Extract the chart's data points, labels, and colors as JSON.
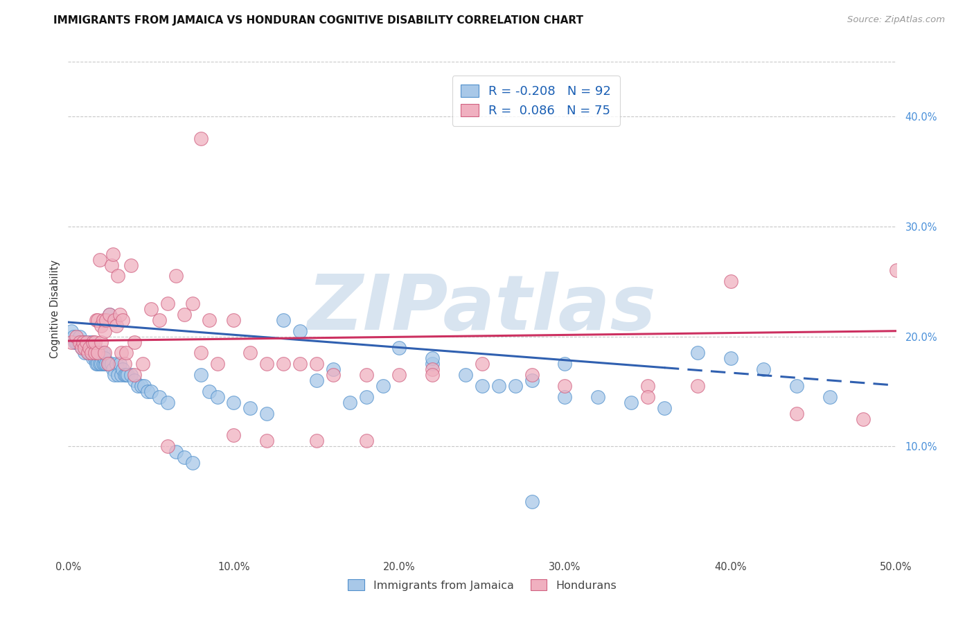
{
  "title": "IMMIGRANTS FROM JAMAICA VS HONDURAN COGNITIVE DISABILITY CORRELATION CHART",
  "source_text": "Source: ZipAtlas.com",
  "ylabel": "Cognitive Disability",
  "xlim": [
    0.0,
    0.5
  ],
  "ylim": [
    0.0,
    0.45
  ],
  "xticks": [
    0.0,
    0.1,
    0.2,
    0.3,
    0.4,
    0.5
  ],
  "yticks_right": [
    0.1,
    0.2,
    0.3,
    0.4
  ],
  "ytick_labels_right": [
    "10.0%",
    "20.0%",
    "30.0%",
    "40.0%"
  ],
  "xtick_labels": [
    "0.0%",
    "10.0%",
    "20.0%",
    "30.0%",
    "40.0%",
    "50.0%"
  ],
  "series": [
    {
      "name": "Immigrants from Jamaica",
      "color": "#a8c8e8",
      "edge_color": "#5090cc",
      "R": -0.208,
      "N": 92,
      "trend_color": "#3060b0",
      "trend_solid_end": 0.36
    },
    {
      "name": "Hondurans",
      "color": "#f0b0c0",
      "edge_color": "#d06080",
      "R": 0.086,
      "N": 75,
      "trend_color": "#cc3060"
    }
  ],
  "legend_R_color": "#1a5fb4",
  "background_color": "#ffffff",
  "grid_color": "#c8c8c8",
  "watermark": "ZIPatlas",
  "watermark_color": "#d8e4f0",
  "jamaica_x": [
    0.002,
    0.003,
    0.004,
    0.005,
    0.006,
    0.007,
    0.008,
    0.009,
    0.01,
    0.01,
    0.011,
    0.012,
    0.012,
    0.013,
    0.013,
    0.014,
    0.014,
    0.015,
    0.015,
    0.016,
    0.016,
    0.017,
    0.017,
    0.018,
    0.018,
    0.019,
    0.019,
    0.02,
    0.02,
    0.021,
    0.021,
    0.022,
    0.022,
    0.023,
    0.024,
    0.025,
    0.025,
    0.026,
    0.027,
    0.028,
    0.029,
    0.03,
    0.031,
    0.032,
    0.033,
    0.034,
    0.035,
    0.036,
    0.038,
    0.04,
    0.042,
    0.044,
    0.046,
    0.048,
    0.05,
    0.055,
    0.06,
    0.065,
    0.07,
    0.075,
    0.08,
    0.085,
    0.09,
    0.1,
    0.11,
    0.12,
    0.13,
    0.14,
    0.15,
    0.16,
    0.17,
    0.18,
    0.19,
    0.2,
    0.22,
    0.24,
    0.26,
    0.28,
    0.3,
    0.32,
    0.34,
    0.36,
    0.38,
    0.4,
    0.42,
    0.44,
    0.46,
    0.25,
    0.27,
    0.3,
    0.22,
    0.28
  ],
  "jamaica_y": [
    0.205,
    0.2,
    0.195,
    0.195,
    0.195,
    0.2,
    0.19,
    0.195,
    0.185,
    0.195,
    0.19,
    0.185,
    0.19,
    0.185,
    0.195,
    0.185,
    0.19,
    0.18,
    0.195,
    0.18,
    0.185,
    0.175,
    0.185,
    0.175,
    0.185,
    0.175,
    0.185,
    0.175,
    0.185,
    0.175,
    0.185,
    0.175,
    0.18,
    0.175,
    0.175,
    0.175,
    0.22,
    0.175,
    0.17,
    0.165,
    0.175,
    0.165,
    0.175,
    0.165,
    0.17,
    0.165,
    0.165,
    0.165,
    0.165,
    0.16,
    0.155,
    0.155,
    0.155,
    0.15,
    0.15,
    0.145,
    0.14,
    0.095,
    0.09,
    0.085,
    0.165,
    0.15,
    0.145,
    0.14,
    0.135,
    0.13,
    0.215,
    0.205,
    0.16,
    0.17,
    0.14,
    0.145,
    0.155,
    0.19,
    0.175,
    0.165,
    0.155,
    0.16,
    0.145,
    0.145,
    0.14,
    0.135,
    0.185,
    0.18,
    0.17,
    0.155,
    0.145,
    0.155,
    0.155,
    0.175,
    0.18,
    0.05
  ],
  "honduran_x": [
    0.002,
    0.005,
    0.007,
    0.008,
    0.009,
    0.01,
    0.011,
    0.012,
    0.013,
    0.014,
    0.015,
    0.016,
    0.016,
    0.017,
    0.018,
    0.018,
    0.019,
    0.02,
    0.02,
    0.021,
    0.022,
    0.022,
    0.023,
    0.024,
    0.025,
    0.026,
    0.027,
    0.028,
    0.029,
    0.03,
    0.031,
    0.032,
    0.033,
    0.034,
    0.035,
    0.038,
    0.04,
    0.045,
    0.05,
    0.055,
    0.06,
    0.065,
    0.07,
    0.075,
    0.08,
    0.085,
    0.09,
    0.1,
    0.11,
    0.12,
    0.13,
    0.14,
    0.15,
    0.16,
    0.18,
    0.2,
    0.22,
    0.25,
    0.28,
    0.3,
    0.35,
    0.38,
    0.4,
    0.44,
    0.48,
    0.5,
    0.12,
    0.15,
    0.18,
    0.22,
    0.35,
    0.1,
    0.08,
    0.06,
    0.04
  ],
  "honduran_y": [
    0.195,
    0.2,
    0.195,
    0.19,
    0.195,
    0.19,
    0.195,
    0.185,
    0.19,
    0.185,
    0.195,
    0.185,
    0.195,
    0.215,
    0.215,
    0.185,
    0.27,
    0.195,
    0.21,
    0.215,
    0.205,
    0.185,
    0.215,
    0.175,
    0.22,
    0.265,
    0.275,
    0.215,
    0.21,
    0.255,
    0.22,
    0.185,
    0.215,
    0.175,
    0.185,
    0.265,
    0.195,
    0.175,
    0.225,
    0.215,
    0.23,
    0.255,
    0.22,
    0.23,
    0.185,
    0.215,
    0.175,
    0.215,
    0.185,
    0.175,
    0.175,
    0.175,
    0.175,
    0.165,
    0.165,
    0.165,
    0.17,
    0.175,
    0.165,
    0.155,
    0.155,
    0.155,
    0.25,
    0.13,
    0.125,
    0.26,
    0.105,
    0.105,
    0.105,
    0.165,
    0.145,
    0.11,
    0.38,
    0.1,
    0.165
  ]
}
